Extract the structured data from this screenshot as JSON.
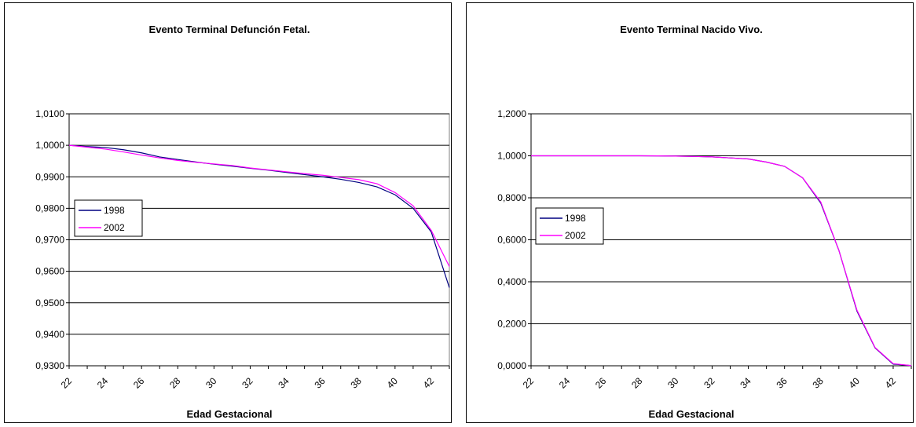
{
  "chart_data": [
    {
      "type": "line",
      "title": "Evento Terminal Defunción Fetal.",
      "xlabel": "Edad Gestacional",
      "ylabel": "",
      "x": [
        22,
        23,
        24,
        25,
        26,
        27,
        28,
        29,
        30,
        31,
        32,
        33,
        34,
        35,
        36,
        37,
        38,
        39,
        40,
        41,
        42,
        43
      ],
      "x_tick_labels": [
        "22",
        "24",
        "26",
        "28",
        "30",
        "32",
        "34",
        "36",
        "38",
        "40",
        "42"
      ],
      "ylim": [
        0.93,
        1.01
      ],
      "y_tick_labels": [
        "0,9300",
        "0,9400",
        "0,9500",
        "0,9600",
        "0,9700",
        "0,9800",
        "0,9900",
        "1,0000",
        "1,0100"
      ],
      "grid": true,
      "legend_position": "left",
      "series": [
        {
          "name": "1998",
          "color": "#000080",
          "values": [
            1.0,
            0.9996,
            0.9993,
            0.9986,
            0.9976,
            0.9963,
            0.9955,
            0.9947,
            0.994,
            0.9934,
            0.9927,
            0.9921,
            0.9914,
            0.9907,
            0.99,
            0.9892,
            0.9882,
            0.9868,
            0.9843,
            0.98,
            0.9725,
            0.9548
          ]
        },
        {
          "name": "2002",
          "color": "#ff00ff",
          "values": [
            1.0,
            0.9994,
            0.9988,
            0.9979,
            0.9969,
            0.996,
            0.9952,
            0.9946,
            0.9941,
            0.9936,
            0.9928,
            0.9922,
            0.9916,
            0.991,
            0.9905,
            0.9898,
            0.9891,
            0.9878,
            0.985,
            0.9808,
            0.973,
            0.9615
          ]
        }
      ]
    },
    {
      "type": "line",
      "title": "Evento Terminal Nacido Vivo.",
      "xlabel": "Edad Gestacional",
      "ylabel": "",
      "x": [
        22,
        23,
        24,
        25,
        26,
        27,
        28,
        29,
        30,
        31,
        32,
        33,
        34,
        35,
        36,
        37,
        38,
        39,
        40,
        41,
        42,
        43
      ],
      "x_tick_labels": [
        "22",
        "24",
        "26",
        "28",
        "30",
        "32",
        "34",
        "36",
        "38",
        "40",
        "42"
      ],
      "ylim": [
        0.0,
        1.2
      ],
      "y_tick_labels": [
        "0,0000",
        "0,2000",
        "0,4000",
        "0,6000",
        "0,8000",
        "1,0000",
        "1,2000"
      ],
      "grid": true,
      "legend_position": "left",
      "series": [
        {
          "name": "1998",
          "color": "#000080",
          "values": [
            1.0,
            1.0,
            1.0,
            1.0,
            1.0,
            1.0,
            1.0,
            0.9995,
            0.9985,
            0.997,
            0.995,
            0.99,
            0.985,
            0.97,
            0.95,
            0.895,
            0.775,
            0.55,
            0.26,
            0.085,
            0.008,
            0.001
          ]
        },
        {
          "name": "2002",
          "color": "#ff00ff",
          "values": [
            1.0,
            1.0,
            1.0,
            1.0,
            1.0,
            1.0,
            1.0,
            0.9995,
            0.9985,
            0.997,
            0.995,
            0.99,
            0.985,
            0.97,
            0.95,
            0.895,
            0.78,
            0.55,
            0.265,
            0.087,
            0.01,
            0.001
          ]
        }
      ]
    }
  ]
}
